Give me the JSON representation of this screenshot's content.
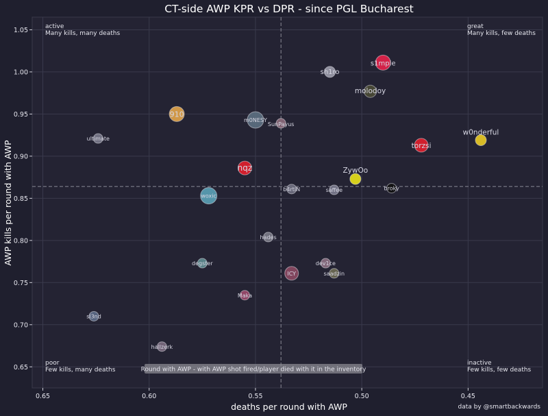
{
  "chart_data": {
    "type": "scatter",
    "title": "CT-side AWP KPR vs DPR - since PGL Bucharest",
    "xlabel": "deaths per round with AWP",
    "ylabel": "AWP kills per round with AWP",
    "xlim": [
      0.655,
      0.415
    ],
    "ylim": [
      0.625,
      1.065
    ],
    "x_inverted": true,
    "xticks": [
      "0.65",
      "0.60",
      "0.55",
      "0.50",
      "0.45"
    ],
    "yticks": [
      "0.65",
      "0.70",
      "0.75",
      "0.80",
      "0.85",
      "0.90",
      "0.95",
      "1.00",
      "1.05"
    ],
    "grid": true,
    "reference_lines": {
      "x": 0.538,
      "y": 0.864
    },
    "corners": {
      "top_left": [
        "active",
        "Many kills, many deaths"
      ],
      "top_right": [
        "great",
        "Many kills, few deaths"
      ],
      "bottom_left": [
        "poor",
        "Few kills, many deaths"
      ],
      "bottom_right": [
        "inactive",
        "Few kills, few deaths"
      ]
    },
    "note": "Round with AWP - with AWP shot fired/player died with it in the inventory",
    "credit": "data by @smartbackwards",
    "points": [
      {
        "name": "s1mple",
        "x": 0.49,
        "y": 1.011,
        "color": "#e3234a"
      },
      {
        "name": "sh1ro",
        "x": 0.515,
        "y": 1.0,
        "color": "#9a9aa8"
      },
      {
        "name": "molodoy",
        "x": 0.496,
        "y": 0.977,
        "color": "#4b4b36"
      },
      {
        "name": "910",
        "x": 0.587,
        "y": 0.95,
        "color": "#e0a34a"
      },
      {
        "name": "m0NESY",
        "x": 0.55,
        "y": 0.943,
        "color": "#5c6f80"
      },
      {
        "name": "SunPayus",
        "x": 0.538,
        "y": 0.939,
        "color": "#8a6a7a"
      },
      {
        "name": "w0nderful",
        "x": 0.444,
        "y": 0.919,
        "color": "#e8c925"
      },
      {
        "name": "ultimate",
        "x": 0.624,
        "y": 0.921,
        "color": "#7a7a8a"
      },
      {
        "name": "torzsi",
        "x": 0.472,
        "y": 0.913,
        "color": "#e0202c"
      },
      {
        "name": "nqz",
        "x": 0.555,
        "y": 0.886,
        "color": "#e0202c"
      },
      {
        "name": "ZywOo",
        "x": 0.503,
        "y": 0.873,
        "color": "#e6e01a"
      },
      {
        "name": "broky",
        "x": 0.486,
        "y": 0.862,
        "color": "#111111"
      },
      {
        "name": "b4rtiN",
        "x": 0.533,
        "y": 0.861,
        "color": "#6e6e7e"
      },
      {
        "name": "saffee",
        "x": 0.513,
        "y": 0.86,
        "color": "#7a7a8c"
      },
      {
        "name": "woxic",
        "x": 0.572,
        "y": 0.853,
        "color": "#5aa0b4"
      },
      {
        "name": "hades",
        "x": 0.544,
        "y": 0.804,
        "color": "#7a7a86"
      },
      {
        "name": "degster",
        "x": 0.575,
        "y": 0.773,
        "color": "#5e8a8e"
      },
      {
        "name": "dev1ce",
        "x": 0.517,
        "y": 0.773,
        "color": "#8a6e80"
      },
      {
        "name": "ICY",
        "x": 0.533,
        "y": 0.761,
        "color": "#8a4a62"
      },
      {
        "name": "saadzin",
        "x": 0.513,
        "y": 0.761,
        "color": "#6c6a52"
      },
      {
        "name": "Maka",
        "x": 0.555,
        "y": 0.735,
        "color": "#9a4a6a"
      },
      {
        "name": "sl3nd",
        "x": 0.626,
        "y": 0.71,
        "color": "#5c6a86"
      },
      {
        "name": "hallzerk",
        "x": 0.594,
        "y": 0.674,
        "color": "#7a6a7e"
      }
    ]
  }
}
